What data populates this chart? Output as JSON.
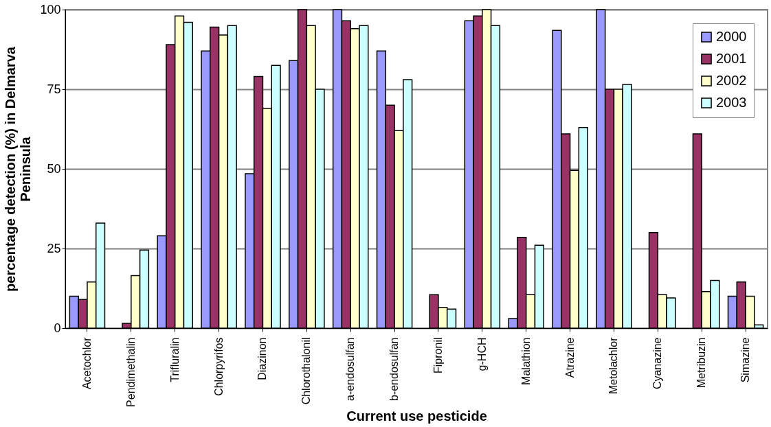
{
  "chart_data": {
    "type": "bar",
    "xlabel": "Current use pesticide",
    "ylabel": "percentage detection (%) in Delmarva Peninsula",
    "categories": [
      "Acetochlor",
      "Pendimethalin",
      "Trifluralin",
      "Chlorpyrifos",
      "Diazinon",
      "Chlorothalonil",
      "a-endosulfan",
      "b-endosulfan",
      "Fipronil",
      "g-HCH",
      "Malathion",
      "Atrazine",
      "Metolachlor",
      "Cyanazine",
      "Metribuzin",
      "Simazine"
    ],
    "series": [
      {
        "name": "2000",
        "color": "#9999ff",
        "values": [
          10,
          null,
          29,
          87,
          48.5,
          84,
          100,
          87,
          null,
          96.5,
          3,
          93.5,
          100,
          null,
          null,
          10
        ]
      },
      {
        "name": "2001",
        "color": "#993366",
        "values": [
          9,
          1.5,
          89,
          94.5,
          79,
          100,
          96.5,
          70,
          10.5,
          98,
          28.5,
          61,
          75,
          30,
          61,
          14.5
        ]
      },
      {
        "name": "2002",
        "color": "#ffffcc",
        "values": [
          14.5,
          16.5,
          98,
          92,
          69,
          95,
          94,
          62,
          6.5,
          100,
          10.5,
          49.5,
          75,
          10.5,
          11.5,
          10
        ]
      },
      {
        "name": "2003",
        "color": "#ccffff",
        "values": [
          33,
          24.5,
          96,
          95,
          82.5,
          75,
          95,
          78,
          6,
          95,
          26,
          63,
          76.5,
          9.5,
          15,
          1
        ]
      }
    ],
    "ylim": [
      0,
      100
    ],
    "yticks": [
      0,
      25,
      50,
      75,
      100
    ],
    "grid": "y",
    "legend": "top right"
  }
}
